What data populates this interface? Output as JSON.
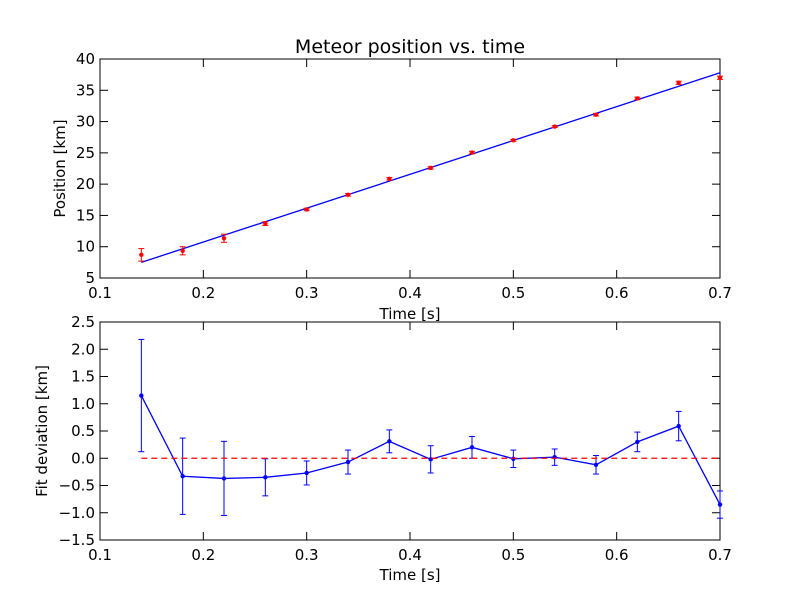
{
  "colors": {
    "fit_line": "#0000ff",
    "measured_points": "#ff0000",
    "deviation_line": "#0000ff",
    "zero_line": "#ff0000",
    "background": "#ffffff",
    "axes": "#000000"
  },
  "chart_data": [
    {
      "type": "line",
      "title": "Meteor position vs. time",
      "xlabel": "Time [s]",
      "ylabel": "Position [km]",
      "xlim": [
        0.1,
        0.7
      ],
      "ylim": [
        5,
        40
      ],
      "grid": false,
      "xticks": [
        "0.1",
        "0.2",
        "0.3",
        "0.4",
        "0.5",
        "0.6",
        "0.7"
      ],
      "yticks": [
        "5",
        "10",
        "15",
        "20",
        "25",
        "30",
        "35",
        "40"
      ],
      "series": [
        {
          "kind": "line",
          "x": [
            0.14,
            0.7
          ],
          "y": [
            7.5,
            37.8
          ]
        },
        {
          "kind": "errorbar",
          "x": [
            0.14,
            0.18,
            0.22,
            0.26,
            0.3,
            0.34,
            0.38,
            0.42,
            0.46,
            0.5,
            0.54,
            0.58,
            0.62,
            0.66,
            0.7
          ],
          "y": [
            8.7,
            9.35,
            11.35,
            13.7,
            15.95,
            18.3,
            20.85,
            22.6,
            25.05,
            27.0,
            29.2,
            31.1,
            33.7,
            36.2,
            37.0
          ],
          "yerr": [
            1.0,
            0.65,
            0.65,
            0.3,
            0.2,
            0.2,
            0.2,
            0.2,
            0.2,
            0.15,
            0.15,
            0.2,
            0.2,
            0.25,
            0.25
          ]
        }
      ]
    },
    {
      "type": "line",
      "xlabel": "Time [s]",
      "ylabel": "Fit deviation [km]",
      "xlim": [
        0.1,
        0.7
      ],
      "ylim": [
        -1.5,
        2.5
      ],
      "grid": false,
      "xticks": [
        "0.1",
        "0.2",
        "0.3",
        "0.4",
        "0.5",
        "0.6",
        "0.7"
      ],
      "yticks": [
        "−1.5",
        "−1.0",
        "−0.5",
        "0.0",
        "0.5",
        "1.0",
        "1.5",
        "2.0",
        "2.5"
      ],
      "series": [
        {
          "kind": "errorbar-line",
          "x": [
            0.14,
            0.18,
            0.22,
            0.26,
            0.3,
            0.34,
            0.38,
            0.42,
            0.46,
            0.5,
            0.54,
            0.58,
            0.62,
            0.66,
            0.7
          ],
          "y": [
            1.15,
            -0.33,
            -0.37,
            -0.35,
            -0.27,
            -0.07,
            0.31,
            -0.02,
            0.2,
            -0.01,
            0.02,
            -0.12,
            0.3,
            0.59,
            -0.85
          ],
          "yerr": [
            1.03,
            0.7,
            0.68,
            0.34,
            0.22,
            0.22,
            0.21,
            0.25,
            0.2,
            0.16,
            0.15,
            0.17,
            0.18,
            0.27,
            0.25
          ]
        },
        {
          "kind": "hline-dashed",
          "x": [
            0.14,
            0.7
          ],
          "y": 0.0
        }
      ]
    }
  ]
}
